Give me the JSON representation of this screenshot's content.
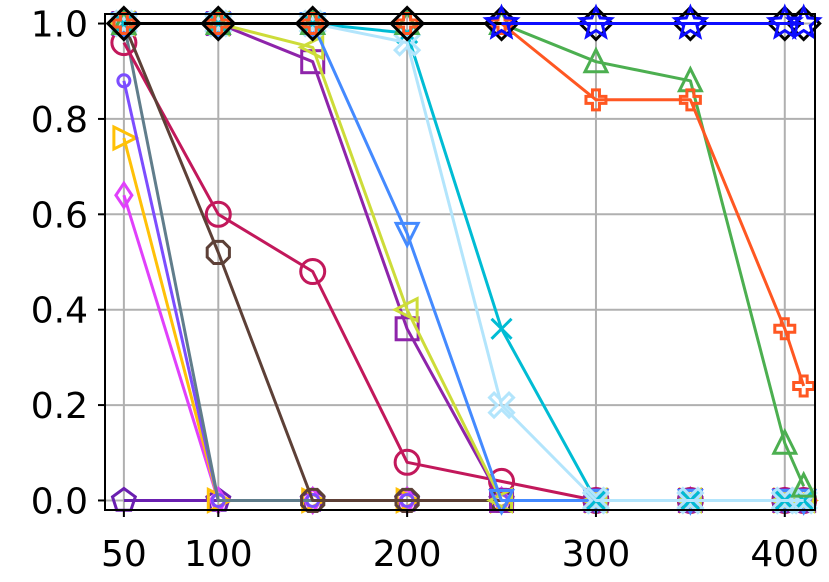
{
  "chart_data": {
    "type": "line",
    "title": "",
    "xlabel": "",
    "ylabel": "",
    "xlim": [
      40,
      416
    ],
    "ylim": [
      -0.02,
      1.02
    ],
    "grid": true,
    "legend": "none",
    "x_ticks": [
      50,
      100,
      200,
      300,
      400
    ],
    "x_tick_labels": [
      "50",
      "100",
      "200",
      "300",
      "400"
    ],
    "y_ticks": [
      0.0,
      0.2,
      0.4,
      0.6,
      0.8,
      1.0
    ],
    "y_tick_labels": [
      "0.0",
      "0.2",
      "0.4",
      "0.6",
      "0.8",
      "1.0"
    ],
    "series": [
      {
        "color": "#6a1fb0",
        "marker": "pentagon",
        "x": [
          50,
          100,
          150,
          200,
          250,
          300,
          350,
          400,
          410
        ],
        "values": [
          0,
          0,
          0,
          0,
          0,
          0,
          0,
          0,
          0
        ]
      },
      {
        "color": "#e040fb",
        "marker": "diamond",
        "x": [
          50,
          100,
          150,
          200,
          250,
          300,
          350,
          400,
          410
        ],
        "values": [
          0.64,
          0,
          0,
          0,
          0,
          0,
          0,
          0,
          0
        ]
      },
      {
        "color": "#ffc107",
        "marker": "triangle-right",
        "x": [
          50,
          100,
          150,
          200,
          250,
          300,
          350,
          400,
          410
        ],
        "values": [
          0.76,
          0,
          0,
          0,
          0,
          0,
          0,
          0,
          0
        ]
      },
      {
        "color": "#7c4dff",
        "marker": "small-circle",
        "x": [
          50,
          100,
          150,
          200,
          250,
          300,
          350,
          400,
          410
        ],
        "values": [
          0.88,
          0,
          0,
          0,
          0,
          0,
          0,
          0,
          0
        ]
      },
      {
        "color": "#607d8b",
        "marker": "none",
        "x": [
          50,
          100,
          150,
          200,
          250,
          300,
          350,
          400,
          410
        ],
        "values": [
          1.0,
          0,
          0,
          0,
          0,
          0,
          0,
          0,
          0
        ]
      },
      {
        "color": "#c2185b",
        "marker": "circle",
        "x": [
          50,
          100,
          150,
          200,
          250,
          300,
          350,
          400,
          410
        ],
        "values": [
          0.96,
          0.6,
          0.48,
          0.08,
          0.04,
          0,
          0,
          0,
          0
        ]
      },
      {
        "color": "#5d4037",
        "marker": "octagon",
        "x": [
          50,
          100,
          150,
          200,
          250,
          300,
          350,
          400,
          410
        ],
        "values": [
          1.0,
          0.52,
          0,
          0,
          0,
          0,
          0,
          0,
          0
        ]
      },
      {
        "color": "#8e24aa",
        "marker": "square",
        "x": [
          50,
          100,
          150,
          200,
          250,
          300,
          350,
          400,
          410
        ],
        "values": [
          1.0,
          1.0,
          0.92,
          0.36,
          0,
          0,
          0,
          0,
          0
        ]
      },
      {
        "color": "#cddc39",
        "marker": "triangle-left",
        "x": [
          50,
          100,
          150,
          200,
          250,
          300,
          350,
          400,
          410
        ],
        "values": [
          1.0,
          1.0,
          0.95,
          0.4,
          0,
          0,
          0,
          0,
          0
        ]
      },
      {
        "color": "#448aff",
        "marker": "triangle-down",
        "x": [
          50,
          100,
          150,
          200,
          250,
          300,
          350,
          400,
          410
        ],
        "values": [
          1.0,
          1.0,
          1.0,
          0.56,
          0,
          0,
          0,
          0,
          0
        ]
      },
      {
        "color": "#00bcd4",
        "marker": "x",
        "x": [
          50,
          100,
          150,
          200,
          250,
          300,
          350,
          400,
          410
        ],
        "values": [
          1.0,
          1.0,
          1.0,
          0.98,
          0.36,
          0,
          0,
          0,
          0
        ]
      },
      {
        "color": "#b3e5fc",
        "marker": "x-filled",
        "x": [
          50,
          100,
          150,
          200,
          250,
          300,
          350,
          400,
          410
        ],
        "values": [
          1.0,
          1.0,
          1.0,
          0.96,
          0.2,
          0,
          0,
          0,
          0
        ]
      },
      {
        "color": "#4caf50",
        "marker": "triangle-up",
        "x": [
          50,
          100,
          150,
          200,
          250,
          300,
          350,
          400,
          410
        ],
        "values": [
          1.0,
          1.0,
          1.0,
          1.0,
          1.0,
          0.92,
          0.88,
          0.12,
          0.03
        ]
      },
      {
        "color": "#ff5722",
        "marker": "plus-filled",
        "x": [
          50,
          100,
          150,
          200,
          250,
          300,
          350,
          400,
          410
        ],
        "values": [
          1.0,
          1.0,
          1.0,
          1.0,
          1.0,
          0.84,
          0.84,
          0.36,
          0.24
        ]
      },
      {
        "color": "#000000",
        "marker": "big-diamond",
        "x": [
          50,
          100,
          150,
          200,
          250,
          300,
          350,
          400,
          410
        ],
        "values": [
          1.0,
          1.0,
          1.0,
          1.0,
          1.0,
          1.0,
          1.0,
          1.0,
          1.0
        ]
      },
      {
        "color": "#0d0dff",
        "marker": "star",
        "x": [
          250,
          300,
          350,
          400,
          410
        ],
        "values": [
          1.0,
          1.0,
          1.0,
          1.0,
          1.0
        ]
      }
    ]
  }
}
